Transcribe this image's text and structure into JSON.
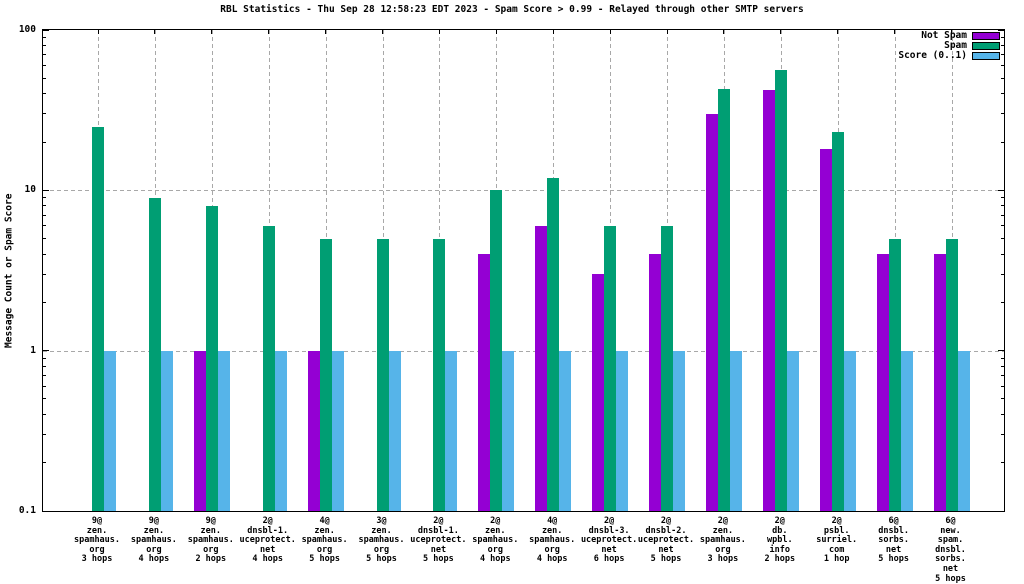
{
  "colors": {
    "not_spam": "#9400d3",
    "spam": "#009e73",
    "score": "#56b4e9",
    "grid": "#a8a8a8",
    "axis": "#000000",
    "background": "#ffffff"
  },
  "chart_data": {
    "type": "bar",
    "title": "RBL Statistics - Thu Sep 28 12:58:23 EDT 2023 - Spam Score > 0.99 - Relayed through other SMTP servers",
    "xlabel": "",
    "ylabel": "Message Count or Spam Score",
    "yscale": "log",
    "ylim": [
      0.1,
      100
    ],
    "yticks": [
      100,
      10,
      1,
      0.1
    ],
    "ytick_labels": [
      "100",
      "10",
      "1",
      "0.1"
    ],
    "grid": true,
    "legend_position": "top-right",
    "categories": [
      "9@\nzen.\nspamhaus.\norg\n3 hops",
      "9@\nzen.\nspamhaus.\norg\n4 hops",
      "9@\nzen.\nspamhaus.\norg\n2 hops",
      "2@\ndnsbl-1.\nuceprotect.\nnet\n4 hops",
      "4@\nzen.\nspamhaus.\norg\n5 hops",
      "3@\nzen.\nspamhaus.\norg\n5 hops",
      "2@\ndnsbl-1.\nuceprotect.\nnet\n5 hops",
      "2@\nzen.\nspamhaus.\norg\n4 hops",
      "4@\nzen.\nspamhaus.\norg\n4 hops",
      "2@\ndnsbl-3.\nuceprotect.\nnet\n6 hops",
      "2@\ndnsbl-2.\nuceprotect.\nnet\n5 hops",
      "2@\nzen.\nspamhaus.\norg\n3 hops",
      "2@\ndb.\nwpbl.\ninfo\n2 hops",
      "2@\npsbl.\nsurriel.\ncom\n1 hop",
      "6@\ndnsbl.\nsorbs.\nnet\n5 hops",
      "6@\nnew.\nspam.\ndnsbl.\nsorbs.\nnet\n5 hops"
    ],
    "series": [
      {
        "name": "Not Spam",
        "color": "#9400d3",
        "values": [
          0,
          0,
          1,
          0,
          1,
          0,
          0,
          4,
          6,
          3,
          4,
          30,
          42,
          18,
          4,
          4
        ]
      },
      {
        "name": "Spam",
        "color": "#009e73",
        "values": [
          25,
          9,
          8,
          6,
          5,
          5,
          5,
          10,
          12,
          6,
          6,
          43,
          56,
          23,
          5,
          5
        ]
      },
      {
        "name": "Score (0..1)",
        "color": "#56b4e9",
        "values": [
          0.99,
          0.99,
          0.99,
          0.99,
          0.99,
          0.99,
          0.99,
          0.99,
          0.99,
          0.99,
          0.99,
          0.99,
          0.99,
          0.99,
          0.99,
          0.99
        ]
      }
    ]
  }
}
